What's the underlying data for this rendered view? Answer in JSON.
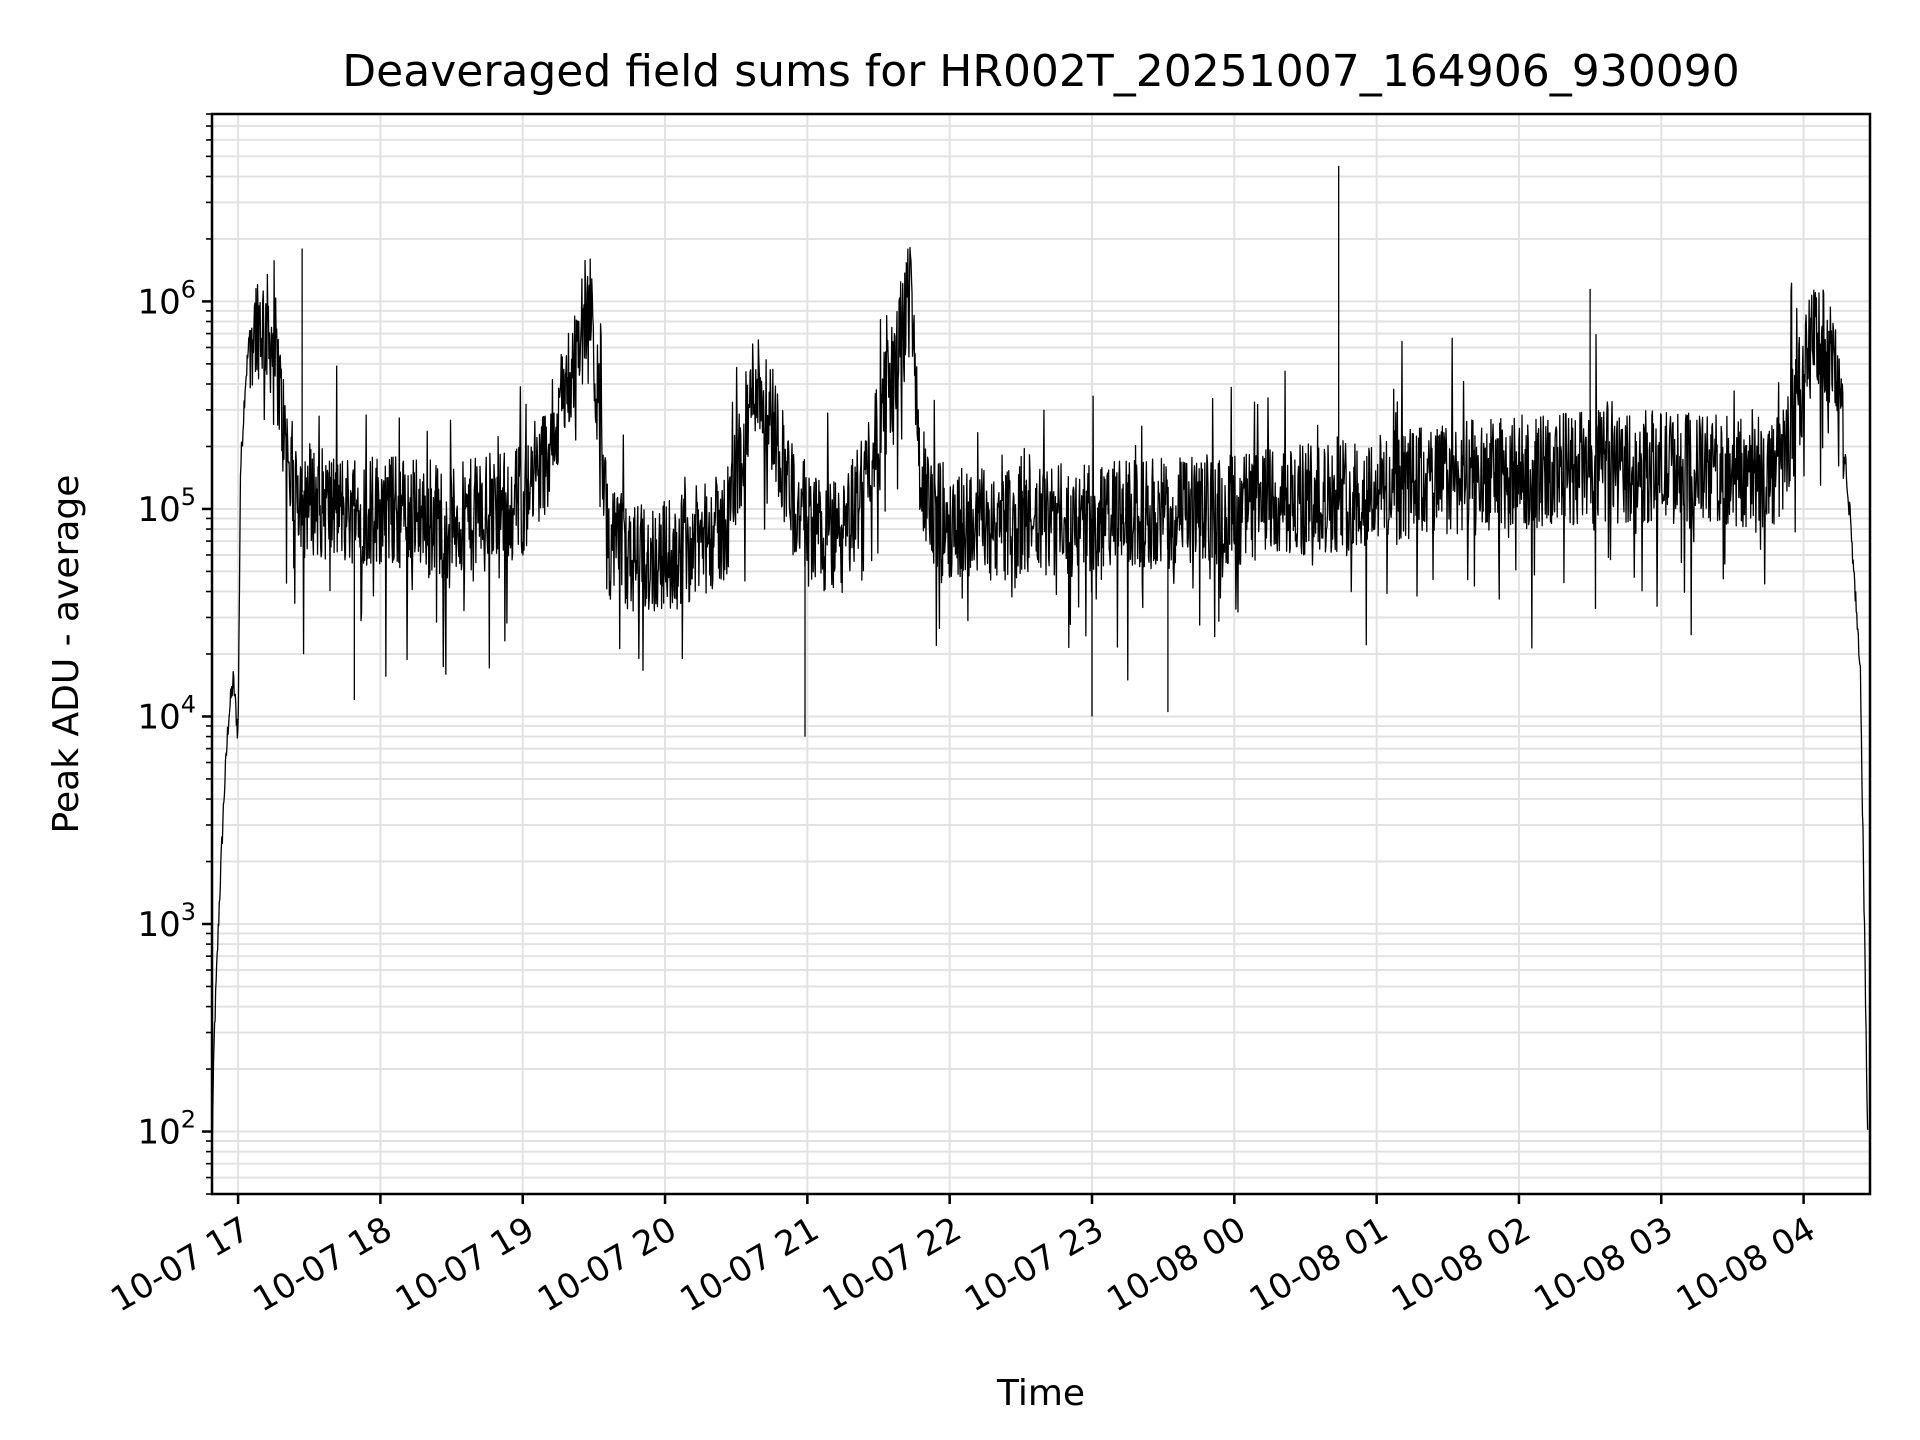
{
  "chart_data": {
    "type": "line",
    "title": "Deaveraged field sums for HR002T_20251007_164906_930090",
    "xlabel": "Time",
    "ylabel": "Peak ADU - average",
    "yscale": "log",
    "ylim": [
      50,
      8000000
    ],
    "xlim": [
      "2025-10-07 16:49",
      "2025-10-08 04:28"
    ],
    "grid": true,
    "line_color": "#000000",
    "x_ticks": [
      {
        "time": "2025-10-07 17:00",
        "label": "10-07 17"
      },
      {
        "time": "2025-10-07 18:00",
        "label": "10-07 18"
      },
      {
        "time": "2025-10-07 19:00",
        "label": "10-07 19"
      },
      {
        "time": "2025-10-07 20:00",
        "label": "10-07 20"
      },
      {
        "time": "2025-10-07 21:00",
        "label": "10-07 21"
      },
      {
        "time": "2025-10-07 22:00",
        "label": "10-07 22"
      },
      {
        "time": "2025-10-07 23:00",
        "label": "10-07 23"
      },
      {
        "time": "2025-10-08 00:00",
        "label": "10-08 00"
      },
      {
        "time": "2025-10-08 01:00",
        "label": "10-08 01"
      },
      {
        "time": "2025-10-08 02:00",
        "label": "10-08 02"
      },
      {
        "time": "2025-10-08 03:00",
        "label": "10-08 03"
      },
      {
        "time": "2025-10-08 04:00",
        "label": "10-08 04"
      }
    ],
    "y_ticks": [
      {
        "value": 100,
        "base": "10",
        "exp": "2"
      },
      {
        "value": 1000,
        "base": "10",
        "exp": "3"
      },
      {
        "value": 10000,
        "base": "10",
        "exp": "4"
      },
      {
        "value": 100000,
        "base": "10",
        "exp": "5"
      },
      {
        "value": 1000000,
        "base": "10",
        "exp": "6"
      }
    ],
    "series": [
      {
        "name": "",
        "x": [
          "2025-10-07 16:49",
          "2025-10-07 16:50",
          "2025-10-07 16:52",
          "2025-10-07 16:54",
          "2025-10-07 16:56",
          "2025-10-07 16:58",
          "2025-10-07 17:00",
          "2025-10-07 17:01",
          "2025-10-07 17:03",
          "2025-10-07 17:05",
          "2025-10-07 17:08",
          "2025-10-07 17:12",
          "2025-10-07 17:16",
          "2025-10-07 17:20",
          "2025-10-07 17:23",
          "2025-10-07 17:27",
          "2025-10-07 17:30",
          "2025-10-07 17:40",
          "2025-10-07 17:50",
          "2025-10-07 18:00",
          "2025-10-07 18:15",
          "2025-10-07 18:30",
          "2025-10-07 18:45",
          "2025-10-07 19:00",
          "2025-10-07 19:10",
          "2025-10-07 19:20",
          "2025-10-07 19:28",
          "2025-10-07 19:32",
          "2025-10-07 19:36",
          "2025-10-07 19:45",
          "2025-10-07 20:00",
          "2025-10-07 20:15",
          "2025-10-07 20:25",
          "2025-10-07 20:32",
          "2025-10-07 20:38",
          "2025-10-07 20:45",
          "2025-10-07 20:55",
          "2025-10-07 21:05",
          "2025-10-07 21:15",
          "2025-10-07 21:25",
          "2025-10-07 21:35",
          "2025-10-07 21:40",
          "2025-10-07 21:44",
          "2025-10-07 21:48",
          "2025-10-07 21:55",
          "2025-10-07 22:10",
          "2025-10-07 22:30",
          "2025-10-07 23:00",
          "2025-10-07 23:30",
          "2025-10-08 00:00",
          "2025-10-08 00:30",
          "2025-10-08 01:00",
          "2025-10-08 01:30",
          "2025-10-08 02:00",
          "2025-10-08 02:30",
          "2025-10-08 03:00",
          "2025-10-08 03:30",
          "2025-10-08 03:50",
          "2025-10-08 04:00",
          "2025-10-08 04:05",
          "2025-10-08 04:10",
          "2025-10-08 04:15",
          "2025-10-08 04:20",
          "2025-10-08 04:24",
          "2025-10-08 04:27"
        ],
        "values": [
          80,
          300,
          1200,
          4000,
          10000,
          15000,
          8000,
          150000,
          400000,
          700000,
          800000,
          750000,
          550000,
          200000,
          140000,
          120000,
          115000,
          100000,
          100000,
          100000,
          95000,
          85000,
          100000,
          110000,
          180000,
          450000,
          1000000,
          300000,
          70000,
          55000,
          60000,
          70000,
          80000,
          180000,
          430000,
          280000,
          100000,
          80000,
          70000,
          150000,
          400000,
          650000,
          1200000,
          120000,
          90000,
          85000,
          85000,
          90000,
          95000,
          100000,
          110000,
          125000,
          140000,
          150000,
          160000,
          160000,
          150000,
          150000,
          450000,
          700000,
          600000,
          400000,
          80000,
          15000,
          100
        ]
      }
    ],
    "spikes": [
      {
        "time": "2025-10-07 17:27",
        "value": 1800000
      },
      {
        "time": "2025-10-08 00:44",
        "value": 4500000
      },
      {
        "time": "2025-10-08 02:30",
        "value": 1150000
      },
      {
        "time": "2025-10-07 17:49",
        "value": 12000
      },
      {
        "time": "2025-10-07 20:59",
        "value": 8000
      },
      {
        "time": "2025-10-07 23:00",
        "value": 10000
      },
      {
        "time": "2025-10-07 23:32",
        "value": 10500
      }
    ]
  }
}
